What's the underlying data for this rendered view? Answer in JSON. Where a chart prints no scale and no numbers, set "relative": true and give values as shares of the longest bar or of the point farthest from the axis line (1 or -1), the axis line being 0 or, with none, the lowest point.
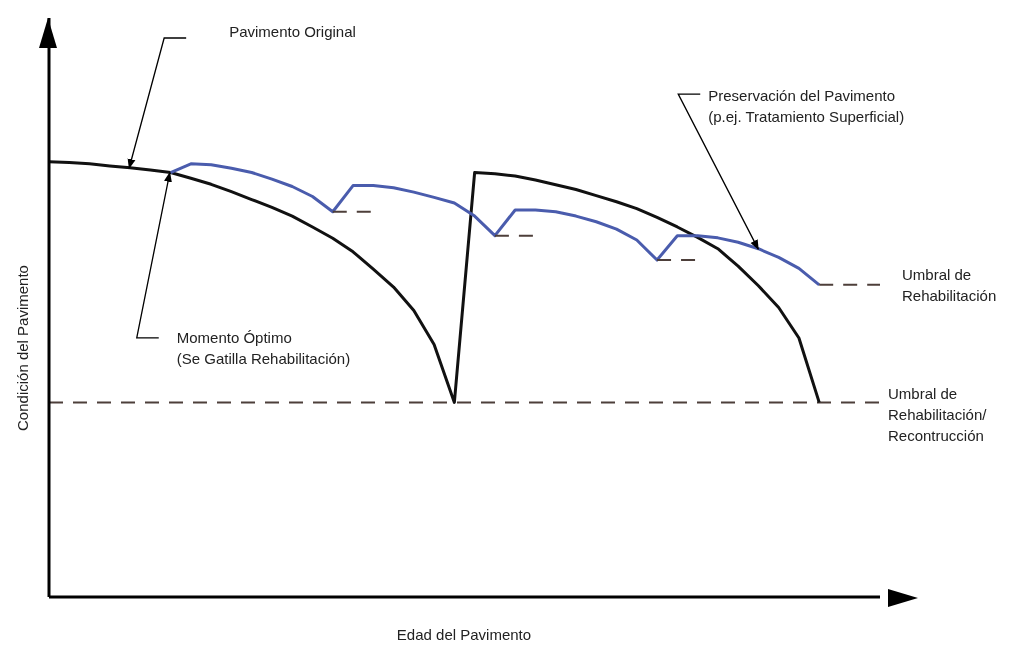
{
  "chart_data": {
    "type": "line",
    "relative": true,
    "xlabel": "Edad del Pavimento",
    "ylabel": "Condición del Pavimento",
    "marker": "none",
    "categories": [
      null,
      null,
      null,
      null,
      null,
      null,
      null,
      null,
      null,
      null,
      null,
      null,
      null,
      null,
      null,
      null,
      null,
      null,
      null,
      null,
      null,
      null,
      null,
      null,
      null,
      null,
      null,
      null,
      null,
      null,
      null,
      null,
      null,
      null,
      null,
      null,
      null,
      null,
      null,
      null,
      null,
      null
    ],
    "series": [
      {
        "color": "#111111",
        "line_style": "solid",
        "values": [
          1,
          0.998,
          0.995,
          0.99,
          0.986,
          0.981,
          0.975,
          0.962,
          0.948,
          0.931,
          0.913,
          0.895,
          0.875,
          0.85,
          0.824,
          0.793,
          0.753,
          0.712,
          0.658,
          0.58,
          0.447,
          0.975,
          0.972,
          0.967,
          0.958,
          0.947,
          0.936,
          0.922,
          0.908,
          0.892,
          0.872,
          0.85,
          0.826,
          0.8,
          0.76,
          0.715,
          0.665,
          0.595,
          0.447,
          null,
          null,
          null
        ]
      },
      {
        "color": "#4a5cad",
        "line_style": "solid",
        "values": [
          null,
          null,
          null,
          null,
          null,
          null,
          0.975,
          0.995,
          0.993,
          0.985,
          0.975,
          0.96,
          0.943,
          0.92,
          0.885,
          0.945,
          0.945,
          0.94,
          0.93,
          0.918,
          0.905,
          0.875,
          0.83,
          0.889,
          0.889,
          0.885,
          0.875,
          0.862,
          0.845,
          0.82,
          0.774,
          0.83,
          0.83,
          0.825,
          0.815,
          0.8,
          0.78,
          0.755,
          0.717,
          null,
          null,
          null
        ]
      },
      {
        "color": "#4d3f3a",
        "line_style": "dashed",
        "values": [
          null,
          null,
          null,
          null,
          null,
          null,
          null,
          null,
          null,
          null,
          null,
          null,
          null,
          null,
          0.885,
          0.885,
          0.885,
          null,
          null,
          null,
          null,
          null,
          null,
          null,
          null,
          null,
          null,
          null,
          null,
          null,
          null,
          null,
          null,
          null,
          null,
          null,
          null,
          null,
          null,
          null,
          null,
          null
        ]
      },
      {
        "color": "#4d3f3a",
        "line_style": "dashed",
        "values": [
          null,
          null,
          null,
          null,
          null,
          null,
          null,
          null,
          null,
          null,
          null,
          null,
          null,
          null,
          null,
          null,
          null,
          null,
          null,
          null,
          null,
          null,
          0.83,
          0.83,
          0.83,
          null,
          null,
          null,
          null,
          null,
          null,
          null,
          null,
          null,
          null,
          null,
          null,
          null,
          null,
          null,
          null,
          null
        ]
      },
      {
        "color": "#4d3f3a",
        "line_style": "dashed",
        "values": [
          null,
          null,
          null,
          null,
          null,
          null,
          null,
          null,
          null,
          null,
          null,
          null,
          null,
          null,
          null,
          null,
          null,
          null,
          null,
          null,
          null,
          null,
          null,
          null,
          null,
          null,
          null,
          null,
          null,
          null,
          0.774,
          0.774,
          0.774,
          null,
          null,
          null,
          null,
          null,
          null,
          null,
          null,
          null
        ]
      },
      {
        "color": "#4d3f3a",
        "line_style": "dashed",
        "values": [
          null,
          null,
          null,
          null,
          null,
          null,
          null,
          null,
          null,
          null,
          null,
          null,
          null,
          null,
          null,
          null,
          null,
          null,
          null,
          null,
          null,
          null,
          null,
          null,
          null,
          null,
          null,
          null,
          null,
          null,
          null,
          null,
          null,
          null,
          null,
          null,
          null,
          null,
          0.717,
          0.717,
          0.717,
          0.717
        ]
      }
    ],
    "ref_lines": [
      {
        "axis": "y",
        "value": 0.447,
        "label": "Umbral de\nRehabilitación/\nRecontrucción",
        "color": "#4d3f3a",
        "line_style": "dashed"
      }
    ],
    "annotations": [
      "Pavimento Original",
      "Momento Óptimo\n(Se Gatilla Rehabilitación)",
      "Preservación del Pavimento\n(p.ej. Tratamiento Superficial)",
      "Umbral de\nRehabilitación"
    ]
  }
}
